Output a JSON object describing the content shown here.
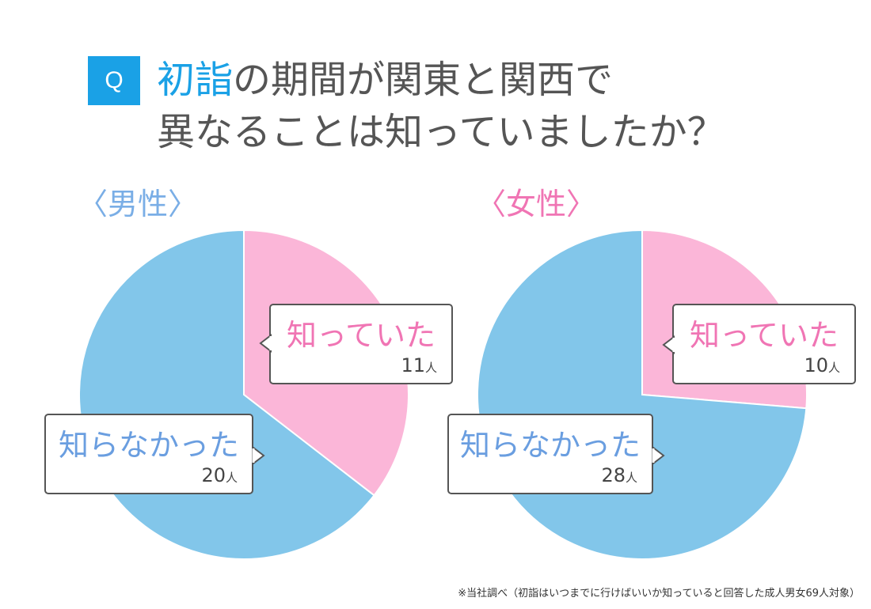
{
  "header": {
    "badge": "Q",
    "title_accent": "初詣",
    "title_line1_rest": "の期間が関東と関西で",
    "title_line2": "異なることは知っていましたか？"
  },
  "colors": {
    "badge": "#1aa1e6",
    "knew": "#fbb6d8",
    "didnt_know": "#82c6ea",
    "male_label": "#7aaee6",
    "female_label": "#f075b4"
  },
  "chart_data": [
    {
      "type": "pie",
      "title": "〈男性〉",
      "categories": [
        "知っていた",
        "知らなかった"
      ],
      "values": [
        11,
        20
      ],
      "unit": "人"
    },
    {
      "type": "pie",
      "title": "〈女性〉",
      "categories": [
        "知っていた",
        "知らなかった"
      ],
      "values": [
        10,
        28
      ],
      "unit": "人"
    }
  ],
  "footnote": "※当社調べ（初詣はいつまでに行けばいいか知っていると回答した成人男女69人対象）"
}
